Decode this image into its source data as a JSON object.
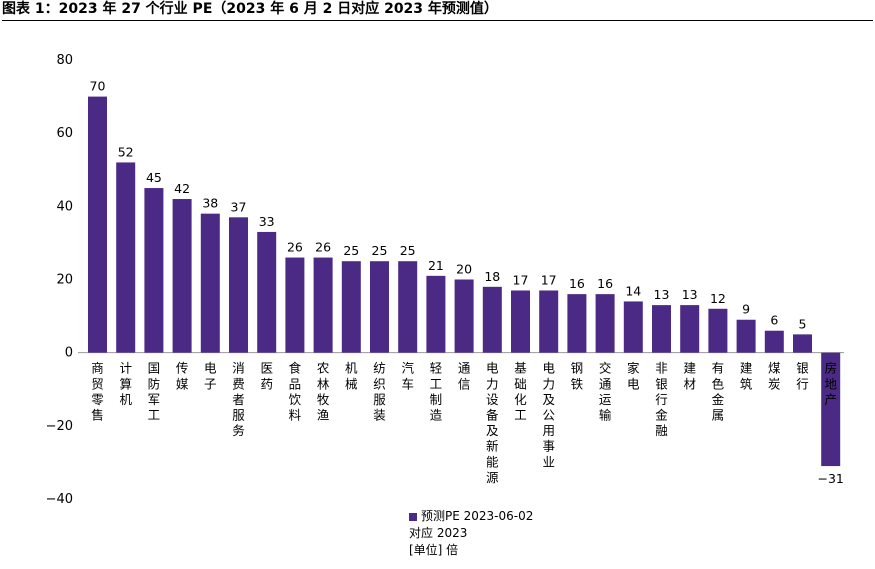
{
  "title": "图表 1：2023 年 27 个行业 PE（2023 年 6 月 2 日对应 2023 年预测值）",
  "chart_data": {
    "type": "bar",
    "categories": [
      "商贸零售",
      "计算机",
      "国防军工",
      "传媒",
      "电子",
      "消费者服务",
      "医药",
      "食品饮料",
      "农林牧渔",
      "机械",
      "纺织服装",
      "汽车",
      "轻工制造",
      "通信",
      "电力设备及新能源",
      "基础化工",
      "电力及公用事业",
      "钢铁",
      "交通运输",
      "家电",
      "非银行金融",
      "建材",
      "有色金属",
      "建筑",
      "煤炭",
      "银行",
      "房地产"
    ],
    "series": [
      {
        "name": "预测PE 2023-06-02",
        "values": [
          70,
          52,
          45,
          42,
          38,
          37,
          33,
          26,
          26,
          25,
          25,
          25,
          21,
          20,
          18,
          17,
          17,
          16,
          16,
          14,
          13,
          13,
          12,
          9,
          6,
          5,
          -31
        ]
      }
    ],
    "ylim": [
      -40,
      80
    ],
    "yticks": [
      80,
      60,
      40,
      20,
      0,
      -20,
      -40
    ],
    "ytick_labels": [
      "80",
      "60",
      "40",
      "20",
      "0",
      "−20",
      "−40"
    ],
    "data_labels": [
      "70",
      "52",
      "45",
      "42",
      "38",
      "37",
      "33",
      "26",
      "26",
      "25",
      "25",
      "25",
      "21",
      "20",
      "18",
      "17",
      "17",
      "16",
      "16",
      "14",
      "13",
      "13",
      "12",
      "9",
      "6",
      "5",
      "−31"
    ],
    "grid": false,
    "legend_position": "bottom-center",
    "colors": {
      "bar": "#4b2a85"
    }
  },
  "legend": {
    "line1": "预测PE 2023-06-02",
    "line2": "对应 2023",
    "line3": "[单位] 倍"
  }
}
